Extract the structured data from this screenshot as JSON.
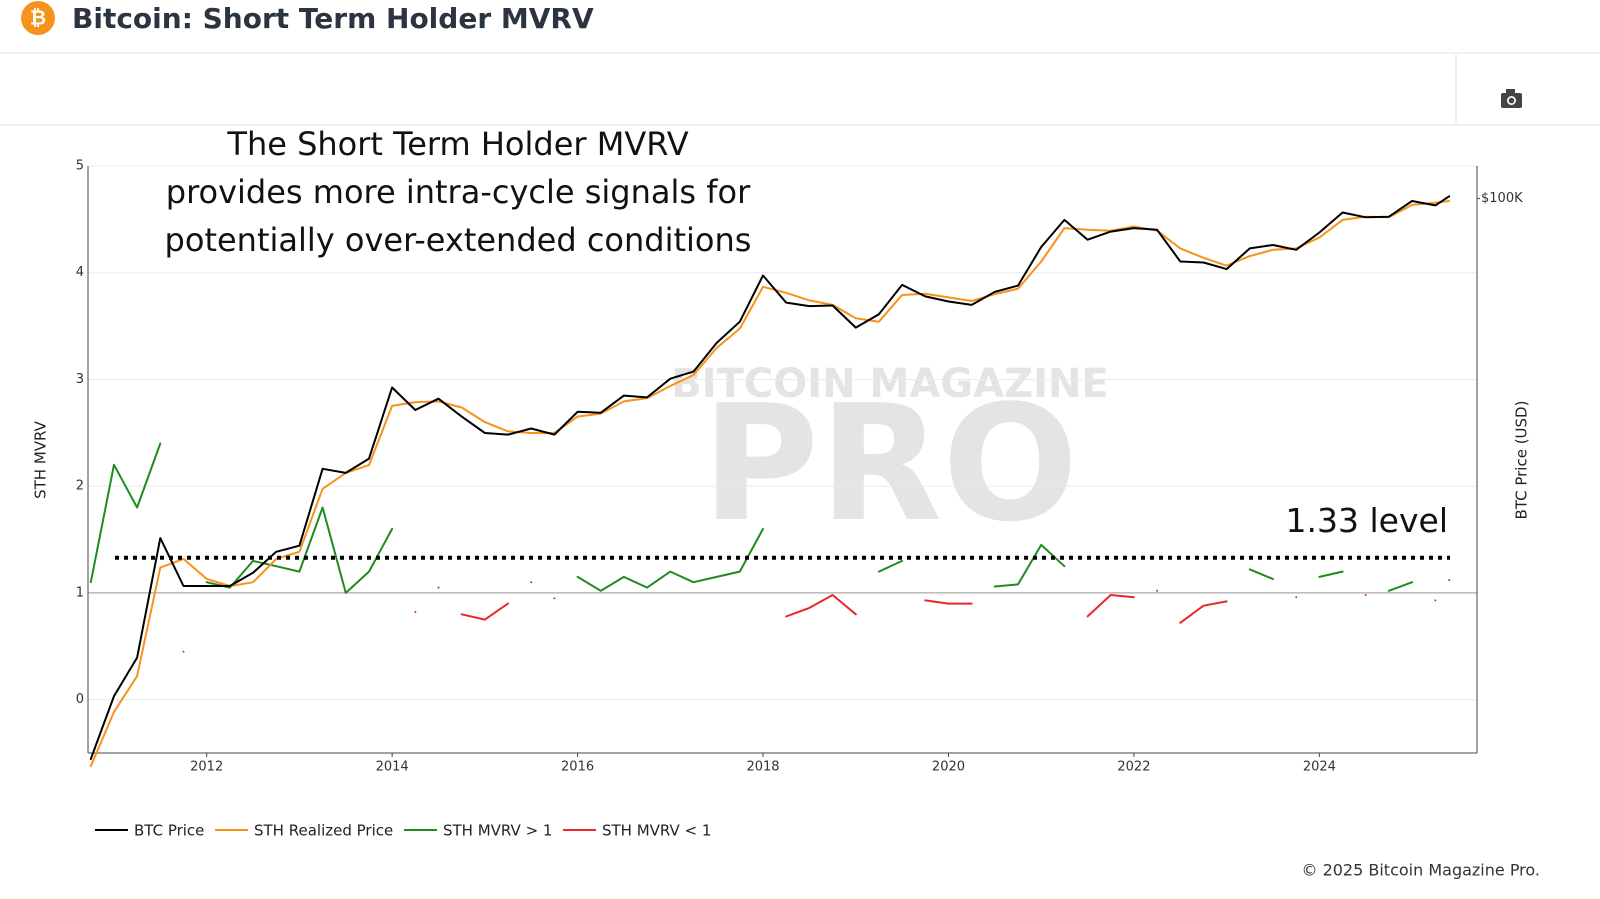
{
  "header": {
    "title": "Bitcoin: Short Term Holder MVRV"
  },
  "footer": "© 2025 Bitcoin Magazine Pro.",
  "chart_data": {
    "type": "line",
    "annotation": [
      "The Short Term Holder MVRV",
      "provides more intra-cycle signals for",
      "potentially over-extended conditions"
    ],
    "watermark": [
      "BITCOIN MAGAZINE",
      "PRO"
    ],
    "y_label": "STH MVRV",
    "y2_label": "BTC Price (USD)",
    "xlim": [
      2010.72,
      2025.7
    ],
    "xticks": [
      2012,
      2014,
      2016,
      2018,
      2020,
      2022,
      2024
    ],
    "ylim": [
      -0.5,
      5
    ],
    "yticks": [
      0,
      1,
      2,
      3,
      4,
      5
    ],
    "y2lim": [
      0.07,
      230000
    ],
    "y2ticks": [
      {
        "value": 100000,
        "label": "$100K"
      }
    ],
    "y2_log": true,
    "grid": true,
    "threshold": 1,
    "reference_line": {
      "value": 1.33,
      "label": "1.33 level"
    },
    "x": [
      2010.75,
      2011,
      2011.25,
      2011.5,
      2011.75,
      2012,
      2012.25,
      2012.5,
      2012.75,
      2013,
      2013.25,
      2013.5,
      2013.75,
      2014,
      2014.25,
      2014.5,
      2014.75,
      2015,
      2015.25,
      2015.5,
      2015.75,
      2016,
      2016.25,
      2016.5,
      2016.75,
      2017,
      2017.25,
      2017.5,
      2017.75,
      2018,
      2018.25,
      2018.5,
      2018.75,
      2019,
      2019.25,
      2019.5,
      2019.75,
      2020,
      2020.25,
      2020.5,
      2020.75,
      2021,
      2021.25,
      2021.5,
      2021.75,
      2022,
      2022.25,
      2022.5,
      2022.75,
      2023,
      2023.25,
      2023.5,
      2023.75,
      2024,
      2024.25,
      2024.5,
      2024.75,
      2025,
      2025.25,
      2025.4
    ],
    "series": [
      {
        "name": "BTC Price",
        "color": "#000000",
        "axis": "y2",
        "values": [
          0.06,
          0.3,
          0.8,
          17,
          5,
          5,
          5,
          7,
          12,
          14,
          100,
          90,
          130,
          800,
          450,
          600,
          380,
          250,
          240,
          280,
          240,
          430,
          420,
          650,
          620,
          1000,
          1200,
          2500,
          4300,
          14000,
          7000,
          6400,
          6500,
          3700,
          5200,
          11000,
          8200,
          7200,
          6600,
          9200,
          10800,
          29000,
          58000,
          35000,
          43000,
          47000,
          45000,
          20000,
          19500,
          16500,
          28000,
          30500,
          27000,
          42000,
          70000,
          62000,
          63000,
          94000,
          84000,
          106000
        ]
      },
      {
        "name": "STH Realized Price",
        "color": "#f7931a",
        "axis": "y2",
        "values": [
          0.05,
          0.2,
          0.5,
          8,
          10,
          6,
          5,
          5.5,
          10,
          12,
          60,
          90,
          110,
          500,
          550,
          560,
          480,
          330,
          260,
          250,
          250,
          380,
          410,
          560,
          610,
          830,
          1100,
          2200,
          3600,
          10500,
          9000,
          7400,
          6600,
          4700,
          4300,
          8500,
          8800,
          8000,
          7300,
          8700,
          10000,
          20000,
          47000,
          45000,
          44000,
          49000,
          44000,
          28000,
          22000,
          18000,
          23000,
          27000,
          28000,
          37000,
          58000,
          63000,
          62000,
          85000,
          90000,
          94000
        ]
      },
      {
        "name": "STH MVRV > 1",
        "color": "#1f8b1f",
        "values": [
          1.1,
          2.2,
          1.8,
          2.4,
          null,
          1.1,
          1.05,
          1.3,
          1.25,
          1.2,
          1.8,
          1.0,
          1.2,
          1.6,
          null,
          1.05,
          null,
          null,
          null,
          1.1,
          null,
          1.15,
          1.02,
          1.15,
          1.05,
          1.2,
          1.1,
          1.15,
          1.2,
          1.6,
          null,
          null,
          null,
          null,
          1.2,
          1.3,
          null,
          null,
          null,
          1.06,
          1.08,
          1.45,
          1.25,
          null,
          null,
          null,
          1.02,
          null,
          null,
          null,
          1.22,
          1.13,
          null,
          1.15,
          1.2,
          null,
          1.02,
          1.1,
          null,
          1.12
        ]
      },
      {
        "name": "STH MVRV < 1",
        "color": "#e8282b",
        "values": [
          null,
          null,
          null,
          null,
          0.45,
          null,
          null,
          null,
          null,
          null,
          null,
          null,
          null,
          null,
          0.82,
          null,
          0.8,
          0.75,
          0.9,
          null,
          0.95,
          null,
          null,
          null,
          null,
          null,
          null,
          null,
          null,
          null,
          0.78,
          0.86,
          0.98,
          0.8,
          null,
          null,
          0.93,
          0.9,
          0.9,
          null,
          null,
          null,
          null,
          0.78,
          0.98,
          0.96,
          null,
          0.72,
          0.88,
          0.92,
          null,
          null,
          0.96,
          null,
          null,
          0.98,
          null,
          null,
          0.93,
          null
        ]
      }
    ]
  }
}
